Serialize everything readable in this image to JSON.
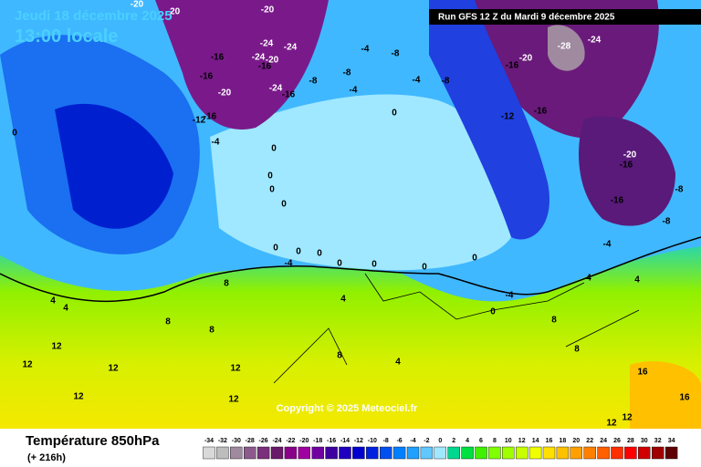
{
  "header": {
    "date": "Jeudi 18 décembre 2025",
    "time": "13:00 locale",
    "run": "Run GFS 12 Z du Mardi 9 décembre 2025"
  },
  "footer": {
    "title": "Température 850hPa",
    "lead": "(+ 216h)",
    "copyright": "Copyright © 2025 Meteociel.fr"
  },
  "legend": {
    "values": [
      -34,
      -32,
      -30,
      -28,
      -26,
      -24,
      -22,
      -20,
      -18,
      -16,
      -14,
      -12,
      -10,
      -8,
      -6,
      -4,
      -2,
      0,
      2,
      4,
      6,
      8,
      10,
      12,
      14,
      16,
      18,
      20,
      22,
      24,
      26,
      28,
      30,
      32,
      34
    ],
    "colors": [
      "#d9d9d9",
      "#bdbdbd",
      "#a08aa0",
      "#8c5a8c",
      "#7a307a",
      "#6a1a6a",
      "#8a008a",
      "#a000a0",
      "#7000a0",
      "#4000a0",
      "#2000c0",
      "#0000d0",
      "#0020e0",
      "#0050f0",
      "#0080ff",
      "#20a0ff",
      "#60c8ff",
      "#a0e8ff",
      "#00d890",
      "#00e040",
      "#40f000",
      "#80ff00",
      "#a0ff00",
      "#c8ff00",
      "#f0ff00",
      "#ffe000",
      "#ffc000",
      "#ffa000",
      "#ff8000",
      "#ff6000",
      "#ff3000",
      "#ff0000",
      "#d00000",
      "#a00000",
      "#600000"
    ]
  },
  "map_labels": [
    -20,
    -20,
    -20,
    -24,
    -24,
    -16,
    -24,
    -16,
    -20,
    -16,
    -20,
    -24,
    -16,
    -8,
    -12,
    -16,
    -4,
    -8,
    -4,
    -4,
    -8,
    -4,
    -8,
    -12,
    -16,
    -20,
    -16,
    -28,
    -24,
    -20,
    -16,
    -16,
    -8,
    -8,
    -4,
    0,
    0,
    0,
    0,
    0,
    0,
    0,
    0,
    0,
    0,
    -4,
    0,
    0,
    4,
    4,
    8,
    4,
    8,
    8,
    12,
    12,
    12,
    12,
    12,
    12,
    8,
    4,
    16,
    16,
    8,
    8,
    4,
    4,
    12,
    12,
    -4,
    0,
    0
  ]
}
